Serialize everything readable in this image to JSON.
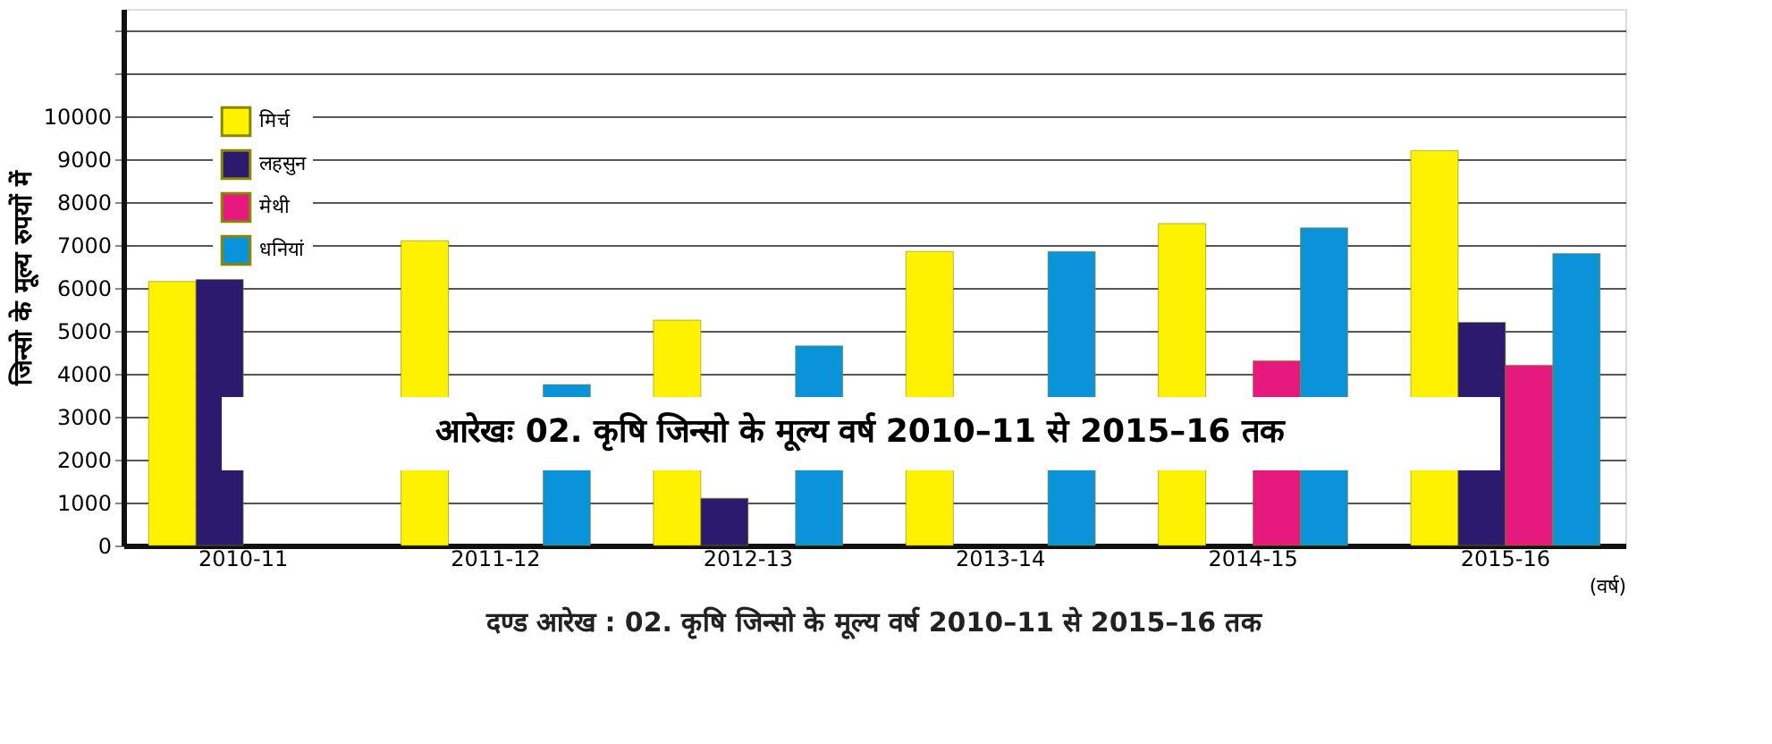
{
  "chart_data": {
    "type": "bar",
    "title": "दण्ड आरेख : 02. कृषि जिन्सो के मूल्य वर्ष 2010–11 से 2015–16 तक",
    "xlabel": "(वर्ष)",
    "ylabel": "जिन्सो के मूल्य रुपयों में",
    "categories": [
      "2010-11",
      "2011-12",
      "2012-13",
      "2013-14",
      "2014-15",
      "2015-16"
    ],
    "series": [
      {
        "name": "मिर्च",
        "color": "#fff200",
        "values": [
          6150,
          7100,
          5250,
          6850,
          7500,
          9200
        ]
      },
      {
        "name": "लहसुन",
        "color": "#2b1a6e",
        "values": [
          6200,
          null,
          1100,
          null,
          null,
          5200
        ]
      },
      {
        "name": "मेथी",
        "color": "#e5197e",
        "values": [
          null,
          null,
          null,
          null,
          4300,
          4200
        ]
      },
      {
        "name": "धनियां",
        "color": "#0a93d8",
        "values": [
          null,
          3750,
          4650,
          6850,
          7400,
          6800
        ]
      }
    ],
    "ylim": [
      0,
      12500
    ],
    "yticks": [
      0,
      1000,
      2000,
      3000,
      4000,
      5000,
      6000,
      7000,
      8000,
      9000,
      10000,
      {
        "value": 11000,
        "label": null
      },
      {
        "value": 12000,
        "label": null
      }
    ],
    "grid": "y",
    "legend": "top left",
    "annotations": [
      "आरेखः 02. कृषि जिन्सो के मूल्य वर्ष 2010–11 से 2015–16 तक"
    ]
  }
}
